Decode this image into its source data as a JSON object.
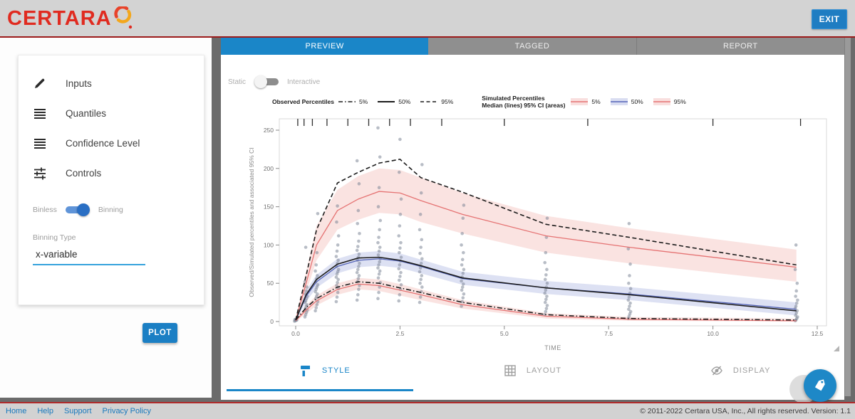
{
  "header": {
    "logo_text": "CERTARA",
    "exit_label": "EXIT"
  },
  "sidebar": {
    "items": [
      {
        "label": "Inputs",
        "icon": "pencil-icon"
      },
      {
        "label": "Quantiles",
        "icon": "list-lines-icon"
      },
      {
        "label": "Confidence Level",
        "icon": "list-lines-icon"
      },
      {
        "label": "Controls",
        "icon": "tune-sliders-icon"
      }
    ],
    "bin_toggle": {
      "left_label": "Binless",
      "right_label": "Binning",
      "selected": "Binning"
    },
    "binning_type": {
      "label": "Binning Type",
      "value": "x-variable"
    },
    "plot_button_label": "PLOT"
  },
  "tabs": [
    {
      "label": "PREVIEW",
      "active": true
    },
    {
      "label": "TAGGED",
      "active": false
    },
    {
      "label": "REPORT",
      "active": false
    }
  ],
  "mode_toggle": {
    "left_label": "Static",
    "right_label": "Interactive",
    "selected": "Static"
  },
  "legend": {
    "observed_title": "Observed Percentiles",
    "observed_entries": [
      {
        "label": "5%",
        "style": "dash-dot"
      },
      {
        "label": "50%",
        "style": "solid"
      },
      {
        "label": "95%",
        "style": "dashed"
      }
    ],
    "simulated_title_line1": "Simulated Percentiles",
    "simulated_title_line2": "Median (lines) 95% CI (areas)",
    "simulated_entries": [
      {
        "label": "5%",
        "line_color": "#e57373",
        "fill_color": "#f2b8b5"
      },
      {
        "label": "50%",
        "line_color": "#5565b8",
        "fill_color": "#aab4e0"
      },
      {
        "label": "95%",
        "line_color": "#e57373",
        "fill_color": "#f2b8b5"
      }
    ]
  },
  "bottom_tabs": [
    {
      "label": "STYLE",
      "icon": "paint-roller-icon",
      "active": true
    },
    {
      "label": "LAYOUT",
      "icon": "grid-icon",
      "active": false
    },
    {
      "label": "DISPLAY",
      "icon": "eye-off-icon",
      "active": false
    }
  ],
  "footer": {
    "links": [
      "Home",
      "Help",
      "Support",
      "Privacy Policy"
    ],
    "copyright": "© 2011-2022 Certara USA, Inc., All rights reserved. Version: 1.1"
  },
  "colors": {
    "accent_blue": "#1a86c8",
    "brand_red": "#e02b20",
    "observed_line": "#1c1c1c",
    "sim_red_line": "#e57373",
    "sim_blue_line": "#5565b8",
    "sim_red_fill": "#f2b8b5",
    "sim_blue_fill": "#aab4e0",
    "scatter_gray": "#7e8798"
  },
  "chart_data": {
    "type": "line",
    "subtype": "vpc-percentiles-with-ci-ribbons-and-scatter",
    "xlabel": "TIME",
    "ylabel": "Observed/Simulated percentiles and associated 95% CI",
    "xlim": [
      -0.4,
      12.9
    ],
    "ylim": [
      0,
      263
    ],
    "x_ticks": [
      0.0,
      2.5,
      5.0,
      7.5,
      10.0,
      12.5
    ],
    "y_ticks": [
      0,
      50,
      100,
      150,
      200,
      250
    ],
    "grid": false,
    "legend_position": "top",
    "bin_boundaries": [
      0.05,
      0.2,
      0.4,
      0.75,
      1.25,
      1.75,
      2.25,
      2.75,
      3.5,
      5.0,
      7.0,
      10.0,
      12.1
    ],
    "times": [
      0,
      0.25,
      0.5,
      1,
      1.5,
      2,
      2.5,
      3,
      4,
      6,
      8,
      12
    ],
    "observed": {
      "p5": [
        2,
        18,
        30,
        45,
        52,
        50,
        44,
        38,
        25,
        9,
        4,
        2
      ],
      "p50": [
        2,
        35,
        55,
        75,
        83,
        84,
        80,
        73,
        57,
        44,
        35,
        14
      ],
      "p95": [
        2,
        60,
        120,
        181,
        195,
        207,
        212,
        188,
        169,
        127,
        110,
        74
      ]
    },
    "simulated": {
      "p5": {
        "median": [
          1,
          15,
          27,
          42,
          49,
          47,
          41,
          35,
          22,
          7,
          3,
          1
        ],
        "lo": [
          0,
          10,
          21,
          35,
          42,
          40,
          34,
          28,
          17,
          4,
          1,
          0
        ],
        "hi": [
          3,
          21,
          34,
          50,
          57,
          55,
          49,
          42,
          28,
          11,
          6,
          4
        ]
      },
      "p50": {
        "median": [
          2,
          33,
          52,
          72,
          80,
          82,
          79,
          72,
          56,
          44,
          36,
          16
        ],
        "lo": [
          0,
          26,
          44,
          63,
          71,
          73,
          70,
          63,
          48,
          36,
          28,
          8
        ],
        "hi": [
          4,
          41,
          61,
          82,
          90,
          92,
          89,
          81,
          65,
          53,
          45,
          25
        ]
      },
      "p95": {
        "median": [
          2,
          50,
          100,
          145,
          160,
          170,
          168,
          158,
          140,
          112,
          97,
          71
        ],
        "lo": [
          1,
          38,
          80,
          120,
          133,
          142,
          140,
          130,
          115,
          90,
          76,
          52
        ],
        "hi": [
          4,
          65,
          125,
          172,
          190,
          200,
          198,
          188,
          168,
          138,
          122,
          94
        ]
      }
    },
    "scatter": [
      {
        "t": 0,
        "values": [
          0.5,
          1,
          1.5,
          2,
          2.5,
          3
        ]
      },
      {
        "t": 0.25,
        "values": [
          6,
          9,
          12,
          15,
          17,
          20,
          22,
          25,
          27,
          30,
          33,
          36,
          40,
          45,
          52,
          97
        ]
      },
      {
        "t": 0.5,
        "values": [
          14,
          18,
          22,
          26,
          30,
          33,
          36,
          39,
          42,
          45,
          48,
          52,
          56,
          60,
          66,
          74,
          90,
          141
        ]
      },
      {
        "t": 1,
        "values": [
          26,
          32,
          38,
          43,
          47,
          51,
          55,
          58,
          62,
          65,
          68,
          72,
          76,
          80,
          85,
          92,
          100,
          112,
          130,
          151
        ]
      },
      {
        "t": 1.5,
        "values": [
          28,
          35,
          42,
          47,
          52,
          56,
          60,
          64,
          68,
          72,
          76,
          80,
          84,
          88,
          93,
          98,
          105,
          115,
          128,
          145,
          180,
          210
        ]
      },
      {
        "t": 2,
        "values": [
          30,
          38,
          45,
          51,
          57,
          62,
          66,
          70,
          74,
          78,
          82,
          87,
          92,
          97,
          103,
          110,
          120,
          132,
          150,
          175,
          215,
          253
        ]
      },
      {
        "t": 2.5,
        "values": [
          27,
          35,
          42,
          48,
          54,
          59,
          64,
          69,
          74,
          79,
          84,
          90,
          96,
          103,
          112,
          125,
          140,
          160,
          195,
          238
        ]
      },
      {
        "t": 3,
        "values": [
          25,
          32,
          39,
          45,
          50,
          55,
          60,
          65,
          70,
          76,
          82,
          89,
          97,
          107,
          120,
          140,
          168,
          205
        ]
      },
      {
        "t": 4,
        "values": [
          20,
          26,
          31,
          36,
          41,
          45,
          49,
          53,
          58,
          63,
          68,
          74,
          81,
          90,
          100,
          115,
          135,
          152
        ]
      },
      {
        "t": 6,
        "values": [
          9,
          13,
          17,
          21,
          25,
          29,
          33,
          37,
          41,
          45,
          50,
          55,
          61,
          68,
          77,
          90,
          110,
          135
        ]
      },
      {
        "t": 8,
        "values": [
          4,
          7,
          10,
          13,
          16,
          20,
          24,
          28,
          32,
          37,
          43,
          50,
          60,
          75,
          95,
          128
        ]
      },
      {
        "t": 12,
        "values": [
          1,
          2,
          4,
          6,
          8,
          11,
          14,
          17,
          20,
          24,
          28,
          33,
          40,
          50,
          68,
          100
        ]
      }
    ]
  }
}
